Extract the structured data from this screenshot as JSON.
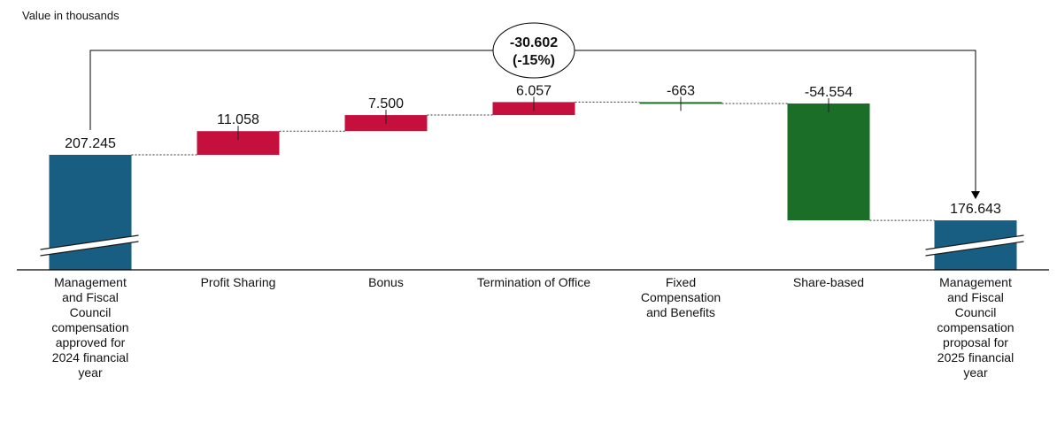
{
  "chart_data": {
    "type": "waterfall",
    "unit_label": "Value in thousands",
    "categories": [
      "Management and Fiscal Council compensation approved for 2024 financial year",
      "Profit Sharing",
      "Bonus",
      "Termination of Office",
      "Fixed Compensation and Benefits",
      "Share-based",
      "Management and Fiscal Council compensation proposal for 2025 financial year"
    ],
    "category_lines": [
      [
        "Management",
        "and Fiscal",
        "Council",
        "compensation",
        "approved for",
        "2024 financial",
        "year"
      ],
      [
        "Profit Sharing"
      ],
      [
        "Bonus"
      ],
      [
        "Termination of Office"
      ],
      [
        "Fixed",
        "Compensation",
        "and Benefits"
      ],
      [
        "Share-based"
      ],
      [
        "Management",
        "and Fiscal",
        "Council",
        "compensation",
        "proposal for",
        "2025 financial",
        "year"
      ]
    ],
    "bar_kinds": [
      "total",
      "delta",
      "delta",
      "delta",
      "delta",
      "delta",
      "total"
    ],
    "values": [
      207245,
      11058,
      7500,
      6057,
      -663,
      -54554,
      176643
    ],
    "value_labels": [
      "207.245",
      "11.058",
      "7.500",
      "6.057",
      "-663",
      "-54.554",
      "176.643"
    ],
    "axis_broken": true,
    "summary": {
      "line1": "-30.602",
      "line2": "(-15%)"
    },
    "colors": {
      "total": "#175e82",
      "increase": "#c50f3c",
      "decrease": "#1b6e27",
      "axis": "#000000",
      "connector": "#333333"
    }
  }
}
